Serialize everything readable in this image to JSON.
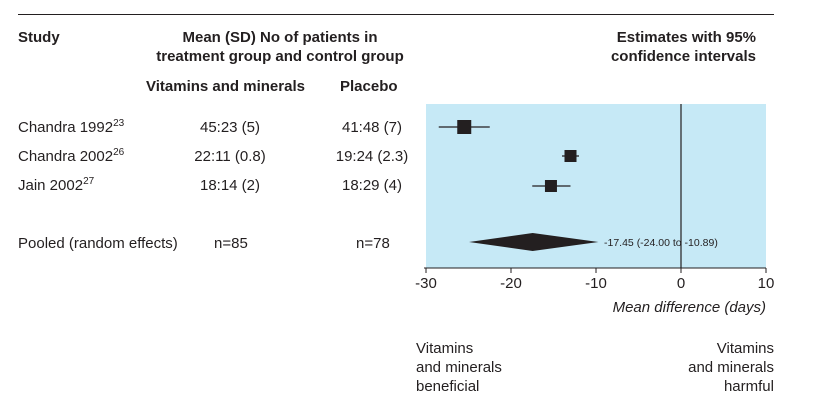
{
  "header": {
    "study": "Study",
    "mean_line1": "Mean (SD) No of patients in",
    "mean_line2": "treatment group and control group",
    "col_treatment": "Vitamins and minerals",
    "col_control": "Placebo",
    "estimates_line1": "Estimates with 95%",
    "estimates_line2": "confidence intervals"
  },
  "rows": [
    {
      "study": "Chandra 1992",
      "ref": "23",
      "treatment": "45:23 (5)",
      "control": "41:48 (7)"
    },
    {
      "study": "Chandra 2002",
      "ref": "26",
      "treatment": "22:11 (0.8)",
      "control": "19:24 (2.3)"
    },
    {
      "study": "Jain 2002",
      "ref": "27",
      "treatment": "18:14 (2)",
      "control": "18:29 (4)"
    }
  ],
  "pooled": {
    "label": "Pooled (random effects)",
    "treatment": "n=85",
    "control": "n=78",
    "estimate_label": "-17.45 (-24.00 to -10.89)"
  },
  "footer": {
    "beneficial_lines": [
      "Vitamins",
      "and minerals",
      "beneficial"
    ],
    "harmful_lines": [
      "Vitamins",
      "and minerals",
      "harmful"
    ]
  },
  "colors": {
    "plot_background": "#c6e9f6",
    "marker": "#231f20",
    "text": "#231f20"
  },
  "chart_data": {
    "type": "forest",
    "xlabel": "Mean difference (days)",
    "xlim": [
      -30,
      10
    ],
    "xticks": [
      -30,
      -20,
      -10,
      0,
      10
    ],
    "reference_line": 0,
    "studies": [
      {
        "name": "Chandra 1992",
        "estimate": -25.5,
        "ci": [
          -28.5,
          -22.5
        ]
      },
      {
        "name": "Chandra 2002",
        "estimate": -13.0,
        "ci": [
          -14.0,
          -12.0
        ]
      },
      {
        "name": "Jain 2002",
        "estimate": -15.3,
        "ci": [
          -17.5,
          -13.0
        ]
      }
    ],
    "pooled": {
      "name": "Pooled (random effects)",
      "estimate": -17.45,
      "ci": [
        -24.0,
        -10.89
      ]
    }
  }
}
